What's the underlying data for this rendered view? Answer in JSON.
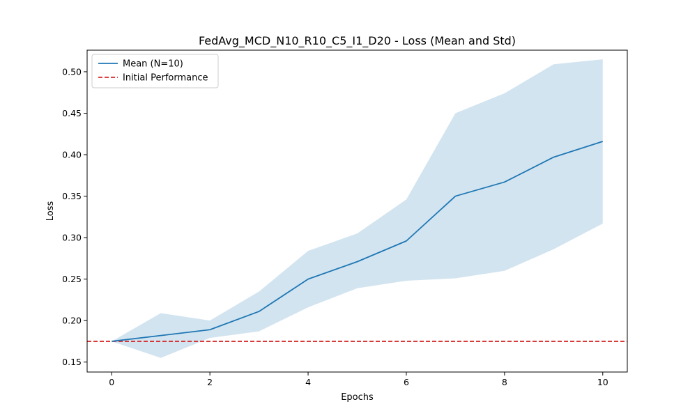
{
  "chart_data": {
    "type": "line",
    "title": "FedAvg_MCD_N10_R10_C5_I1_D20 - Loss (Mean and Std)",
    "xlabel": "Epochs",
    "ylabel": "Loss",
    "xlim": [
      -0.5,
      10.5
    ],
    "ylim": [
      0.138,
      0.526
    ],
    "xticks": [
      0,
      2,
      4,
      6,
      8,
      10
    ],
    "yticks": [
      0.15,
      0.2,
      0.25,
      0.3,
      0.35,
      0.4,
      0.45,
      0.5
    ],
    "ytick_labels": [
      "0.15",
      "0.20",
      "0.25",
      "0.30",
      "0.35",
      "0.40",
      "0.45",
      "0.50"
    ],
    "grid": false,
    "legend_position": "top-left",
    "x": [
      0,
      1,
      2,
      3,
      4,
      5,
      6,
      7,
      8,
      9,
      10
    ],
    "series": [
      {
        "name": "Mean (N=10)",
        "color": "#1f77b4",
        "style": "solid",
        "values": [
          0.175,
          0.182,
          0.189,
          0.211,
          0.25,
          0.271,
          0.296,
          0.35,
          0.367,
          0.397,
          0.416
        ]
      }
    ],
    "band": {
      "color": "#1f77b4",
      "opacity": 0.2,
      "lower": [
        0.175,
        0.155,
        0.179,
        0.187,
        0.216,
        0.239,
        0.248,
        0.251,
        0.26,
        0.286,
        0.317
      ],
      "upper": [
        0.175,
        0.209,
        0.2,
        0.235,
        0.284,
        0.305,
        0.346,
        0.45,
        0.474,
        0.509,
        0.515
      ]
    },
    "reference_line": {
      "name": "Initial Performance",
      "value": 0.175,
      "color": "#d62728",
      "style": "dashed"
    }
  }
}
